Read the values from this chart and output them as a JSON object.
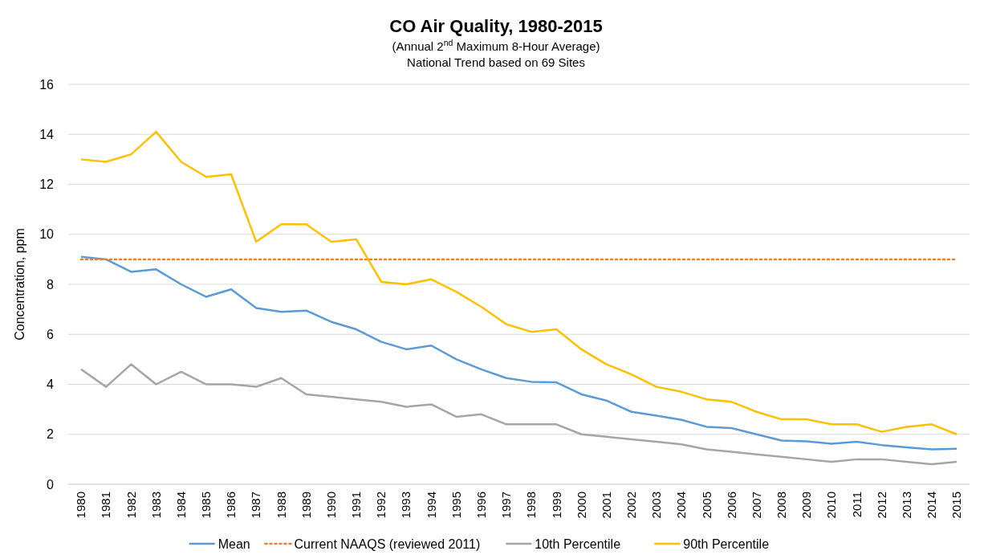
{
  "chart_data": {
    "type": "line",
    "title": "CO Air Quality, 1980-2015",
    "subtitle": "(Annual 2$^{nd}$ Maximum 8-Hour Average)\nNational Trend based on 69 Sites",
    "ylabel": "Concentration, ppm",
    "categories": [
      "1980",
      "1981",
      "1982",
      "1983",
      "1984",
      "1985",
      "1986",
      "1987",
      "1988",
      "1989",
      "1990",
      "1991",
      "1992",
      "1993",
      "1994",
      "1995",
      "1996",
      "1997",
      "1998",
      "1999",
      "2000",
      "2001",
      "2002",
      "2003",
      "2004",
      "2005",
      "2006",
      "2007",
      "2008",
      "2009",
      "2010",
      "2011",
      "2012",
      "2013",
      "2014",
      "2015"
    ],
    "series": [
      {
        "name": "Mean",
        "color": "#5b9bd5",
        "values": [
          9.1,
          9.0,
          8.5,
          8.6,
          8.0,
          7.5,
          7.8,
          7.05,
          6.9,
          6.95,
          6.5,
          6.2,
          5.7,
          5.4,
          5.55,
          5.0,
          4.6,
          4.25,
          4.1,
          4.08,
          3.6,
          3.35,
          2.9,
          2.75,
          2.58,
          2.3,
          2.25,
          2.0,
          1.75,
          1.72,
          1.62,
          1.7,
          1.57,
          1.48,
          1.4,
          1.42
        ]
      },
      {
        "name": "Current NAAQS (reviewed 2011)",
        "color": "#ed7d31",
        "line_style": "dotted",
        "values": [
          9,
          9,
          9,
          9,
          9,
          9,
          9,
          9,
          9,
          9,
          9,
          9,
          9,
          9,
          9,
          9,
          9,
          9,
          9,
          9,
          9,
          9,
          9,
          9,
          9,
          9,
          9,
          9,
          9,
          9,
          9,
          9,
          9,
          9,
          9,
          9
        ]
      },
      {
        "name": "10th Percentile",
        "color": "#a5a5a5",
        "values": [
          4.6,
          3.9,
          4.8,
          4.0,
          4.5,
          4.0,
          4.0,
          3.9,
          4.25,
          3.6,
          3.5,
          3.4,
          3.3,
          3.1,
          3.2,
          2.7,
          2.8,
          2.4,
          2.4,
          2.4,
          2.0,
          1.9,
          1.8,
          1.7,
          1.6,
          1.4,
          1.3,
          1.2,
          1.1,
          1.0,
          0.9,
          1.0,
          1.0,
          0.9,
          0.8,
          0.9
        ]
      },
      {
        "name": "90th Percentile",
        "color": "#ffc000",
        "values": [
          13.0,
          12.9,
          13.2,
          14.1,
          12.9,
          12.3,
          12.4,
          9.7,
          10.4,
          10.4,
          9.7,
          9.8,
          8.1,
          8.0,
          8.2,
          7.7,
          7.1,
          6.4,
          6.1,
          6.2,
          5.4,
          4.8,
          4.4,
          3.9,
          3.7,
          3.4,
          3.3,
          2.9,
          2.6,
          2.6,
          2.4,
          2.4,
          2.1,
          2.3,
          2.4,
          2.0
        ]
      }
    ],
    "ylim": [
      0,
      16
    ],
    "yticks": [
      0,
      2,
      4,
      6,
      8,
      10,
      12,
      14,
      16
    ],
    "grid": "y",
    "legend": "bottom",
    "line_style": "solid",
    "marker": "none"
  }
}
